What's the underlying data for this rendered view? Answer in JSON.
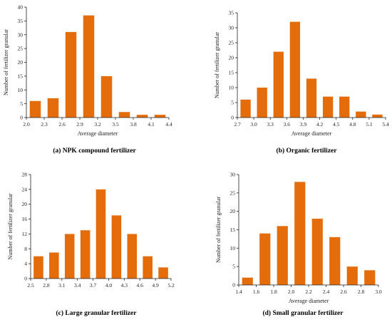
{
  "chart_data": [
    {
      "type": "bar",
      "caption": "(a) NPK compound fertilizer",
      "xlabel": "Average diameter",
      "ylabel": "Number of fertilizer granular",
      "xticks": [
        "2.0",
        "2.3",
        "2.6",
        "2.9",
        "3.2",
        "3.5",
        "3.8",
        "4.1",
        "4.4"
      ],
      "ylim": [
        0,
        40
      ],
      "yticks": [
        0,
        5,
        10,
        15,
        20,
        25,
        30,
        35,
        40
      ],
      "values": [
        6,
        7,
        31,
        37,
        15,
        2,
        1,
        1
      ],
      "color": "#E46C0A"
    },
    {
      "type": "bar",
      "caption": "(b) Organic fertilizer",
      "xlabel": "Average diameter",
      "ylabel": "Number of fertilizer granular",
      "xticks": [
        "2.7",
        "3.0",
        "3.3",
        "3.6",
        "3.9",
        "4.2",
        "4.5",
        "4.8",
        "5.1",
        "5.4"
      ],
      "ylim": [
        0,
        35
      ],
      "yticks": [
        0,
        5,
        10,
        15,
        20,
        25,
        30,
        35
      ],
      "values": [
        6,
        10,
        22,
        32,
        13,
        7,
        7,
        2,
        1
      ],
      "color": "#E46C0A"
    },
    {
      "type": "bar",
      "caption": "(c) Large granular fertilizer",
      "xlabel": "",
      "ylabel": "Number of fertilizer granular",
      "xticks": [
        "2.5",
        "2.8",
        "3.1",
        "3.4",
        "3.7",
        "4.0",
        "4.3",
        "4.6",
        "4.9",
        "5.2"
      ],
      "ylim": [
        0,
        28
      ],
      "yticks": [
        0,
        4,
        8,
        12,
        16,
        20,
        24,
        28
      ],
      "values": [
        6,
        7,
        12,
        13,
        24,
        17,
        12,
        6,
        3
      ],
      "color": "#E46C0A"
    },
    {
      "type": "bar",
      "caption": "(d) Small granular fertilizer",
      "xlabel": "Average diameter",
      "ylabel": "Number of fertilizer granular",
      "xticks": [
        "1.4",
        "1.6",
        "1.8",
        "2.0",
        "2.2",
        "2.4",
        "2.6",
        "2.8",
        "3.0"
      ],
      "ylim": [
        0,
        30
      ],
      "yticks": [
        0,
        5,
        10,
        15,
        20,
        25,
        30
      ],
      "values": [
        2,
        14,
        16,
        28,
        18,
        13,
        5,
        4
      ],
      "color": "#E46C0A"
    }
  ]
}
